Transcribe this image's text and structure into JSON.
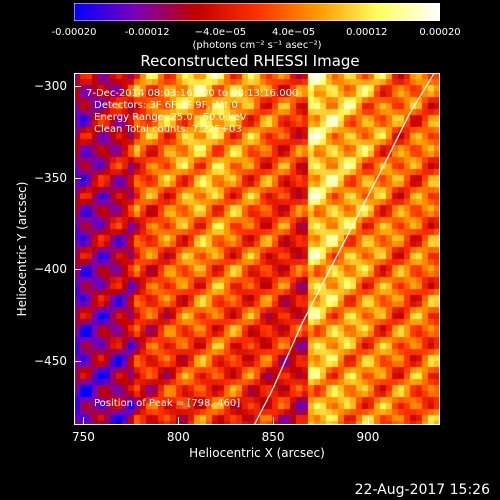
{
  "chart_data": {
    "type": "heatmap",
    "title": "Reconstructed RHESSI Image",
    "xlabel": "Heliocentric X (arcsec)",
    "ylabel": "Heliocentric Y (arcsec)",
    "xlim": [
      745,
      938
    ],
    "ylim": [
      -485,
      -293
    ],
    "xticks": [
      750,
      800,
      850,
      900
    ],
    "yticks": [
      -300,
      -350,
      -400,
      -450
    ],
    "colorbar": {
      "range": [
        -0.0002,
        0.0002
      ],
      "tick_labels": [
        "-0.00020",
        "-0.00012",
        "−4.0e−05",
        "4.0e−05",
        "0.00012",
        "0.00020"
      ],
      "tick_values": [
        -0.0002,
        -0.00012,
        -4e-05,
        4e-05,
        0.00012,
        0.0002
      ],
      "unit_label": "(photons cm⁻² s⁻¹ asec⁻²)",
      "colors": [
        "#0000ff",
        "#7a00b8",
        "#c00000",
        "#ff3000",
        "#ff9a00",
        "#ffff60",
        "#ffffff"
      ]
    },
    "annotations": {
      "time_range": "7-Dec-2014 08:03:16.000 to 08:13:16.000",
      "detectors": "Detectors: 3F 6F 7F 9F, Att 0",
      "energy": "Energy Range: 25.0 - 50.0 keV",
      "method": "Clean     Total counts: 7.22E+03",
      "peak": "Position of Peak = [798,-460]"
    },
    "peak": [
      798,
      -460
    ],
    "limb": [
      [
        840,
        -485
      ],
      [
        850,
        -465
      ],
      [
        865,
        -430
      ],
      [
        880,
        -400
      ],
      [
        895,
        -370
      ],
      [
        910,
        -340
      ],
      [
        922,
        -315
      ],
      [
        935,
        -293
      ]
    ]
  },
  "footer_date": "22-Aug-2017 15:26"
}
